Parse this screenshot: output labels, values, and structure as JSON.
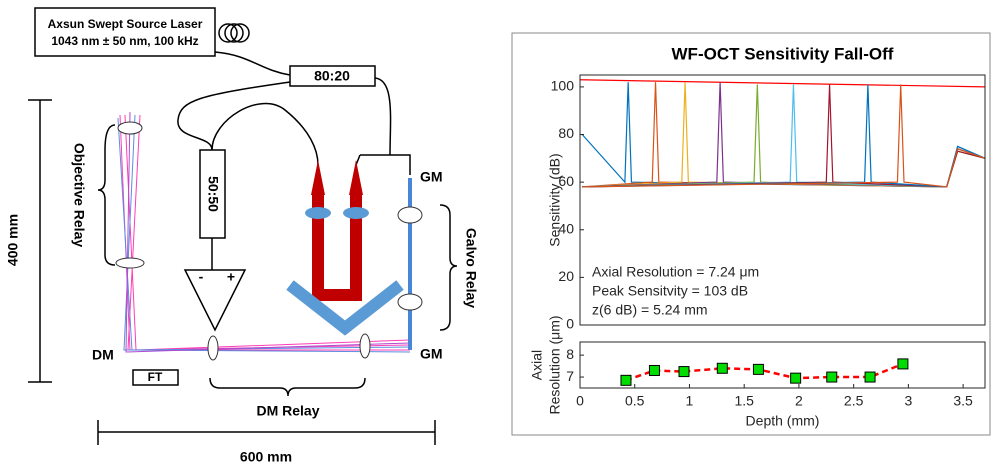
{
  "diagram": {
    "laser_name": "Axsun Swept Source Laser",
    "laser_spec": "1043 nm ± 50 nm, 100 kHz",
    "coupler_1": "80:20",
    "coupler_2": "50:50",
    "detector_minus": "-",
    "detector_plus": "+",
    "objective_relay": "Objective Relay",
    "height": "400 mm",
    "galvo_relay": "Galvo Relay",
    "gm_top": "GM",
    "gm_bottom": "GM",
    "dm": "DM",
    "ft": "FT",
    "dm_relay": "DM Relay",
    "width": "600 mm"
  },
  "chart_data": [
    {
      "type": "line",
      "title": "WF-OCT Sensitivity Fall-Off",
      "ylabel": [
        "Sensitivity (dB)"
      ],
      "xlim": [
        0,
        3.7
      ],
      "ylim": [
        0,
        105
      ],
      "yticks": [
        0,
        20,
        40,
        60,
        80,
        100
      ],
      "annotations": [
        "Axial Resolution = 7.24 μm",
        "Peak Sensitvity = 103 dB",
        "z(6 dB) = 5.24 mm"
      ],
      "series": [
        {
          "color": "#ff0000",
          "x": [
            0,
            3.7
          ],
          "values": [
            103,
            100
          ]
        },
        {
          "color": "#0072bd",
          "x": [
            0.02,
            0.41,
            0.44,
            0.47,
            3.35,
            3.45,
            3.7
          ],
          "values": [
            80,
            60,
            102,
            60,
            58,
            75,
            70
          ]
        },
        {
          "color": "#d95319",
          "x": [
            0.02,
            0.66,
            0.69,
            0.72,
            3.35,
            3.45,
            3.7
          ],
          "values": [
            58,
            60,
            102,
            60,
            58,
            74,
            70
          ]
        },
        {
          "color": "#edb120",
          "x": [
            0.02,
            0.93,
            0.96,
            0.99,
            3.35,
            3.45,
            3.7
          ],
          "values": [
            58,
            60,
            102,
            60,
            58,
            73,
            70
          ]
        },
        {
          "color": "#7e2f8e",
          "x": [
            0.02,
            1.25,
            1.28,
            1.31,
            3.35,
            3.45,
            3.7
          ],
          "values": [
            58,
            60,
            102,
            60,
            58,
            74,
            70
          ]
        },
        {
          "color": "#77ac30",
          "x": [
            0.02,
            1.59,
            1.62,
            1.65,
            3.35,
            3.45,
            3.7
          ],
          "values": [
            58,
            60,
            101,
            60,
            58,
            73,
            70
          ]
        },
        {
          "color": "#4dbeee",
          "x": [
            0.02,
            1.92,
            1.95,
            1.98,
            3.35,
            3.45,
            3.7
          ],
          "values": [
            58,
            60,
            101,
            60,
            58,
            74,
            70
          ]
        },
        {
          "color": "#a2142f",
          "x": [
            0.02,
            2.25,
            2.28,
            2.31,
            3.35,
            3.45,
            3.7
          ],
          "values": [
            58,
            60,
            101,
            60,
            58,
            73,
            70
          ]
        },
        {
          "color": "#0072bd",
          "x": [
            0.02,
            2.6,
            2.63,
            2.66,
            3.35,
            3.45,
            3.7
          ],
          "values": [
            58,
            60,
            101,
            60,
            58,
            75,
            70
          ]
        },
        {
          "color": "#d95319",
          "x": [
            0.02,
            2.9,
            2.93,
            2.96,
            3.35,
            3.45,
            3.7
          ],
          "values": [
            58,
            60,
            101,
            60,
            58,
            74,
            70
          ]
        }
      ]
    },
    {
      "type": "line",
      "xlabel": "Depth (mm)",
      "ylabel": [
        "Axial",
        "Resolution (μm)"
      ],
      "xlim": [
        0,
        3.7
      ],
      "ylim": [
        6.5,
        8.6
      ],
      "yticks": [
        7,
        8
      ],
      "xticks": [
        0,
        0.5,
        1,
        1.5,
        2,
        2.5,
        3,
        3.5
      ],
      "series": [
        {
          "color": "#ff0000",
          "marker_color": "#00dd00",
          "line_style": "dashed",
          "x": [
            0.42,
            0.68,
            0.95,
            1.3,
            1.63,
            1.97,
            2.3,
            2.65,
            2.95
          ],
          "values": [
            6.85,
            7.3,
            7.25,
            7.4,
            7.35,
            6.95,
            7.0,
            7.0,
            7.6
          ]
        }
      ]
    }
  ]
}
